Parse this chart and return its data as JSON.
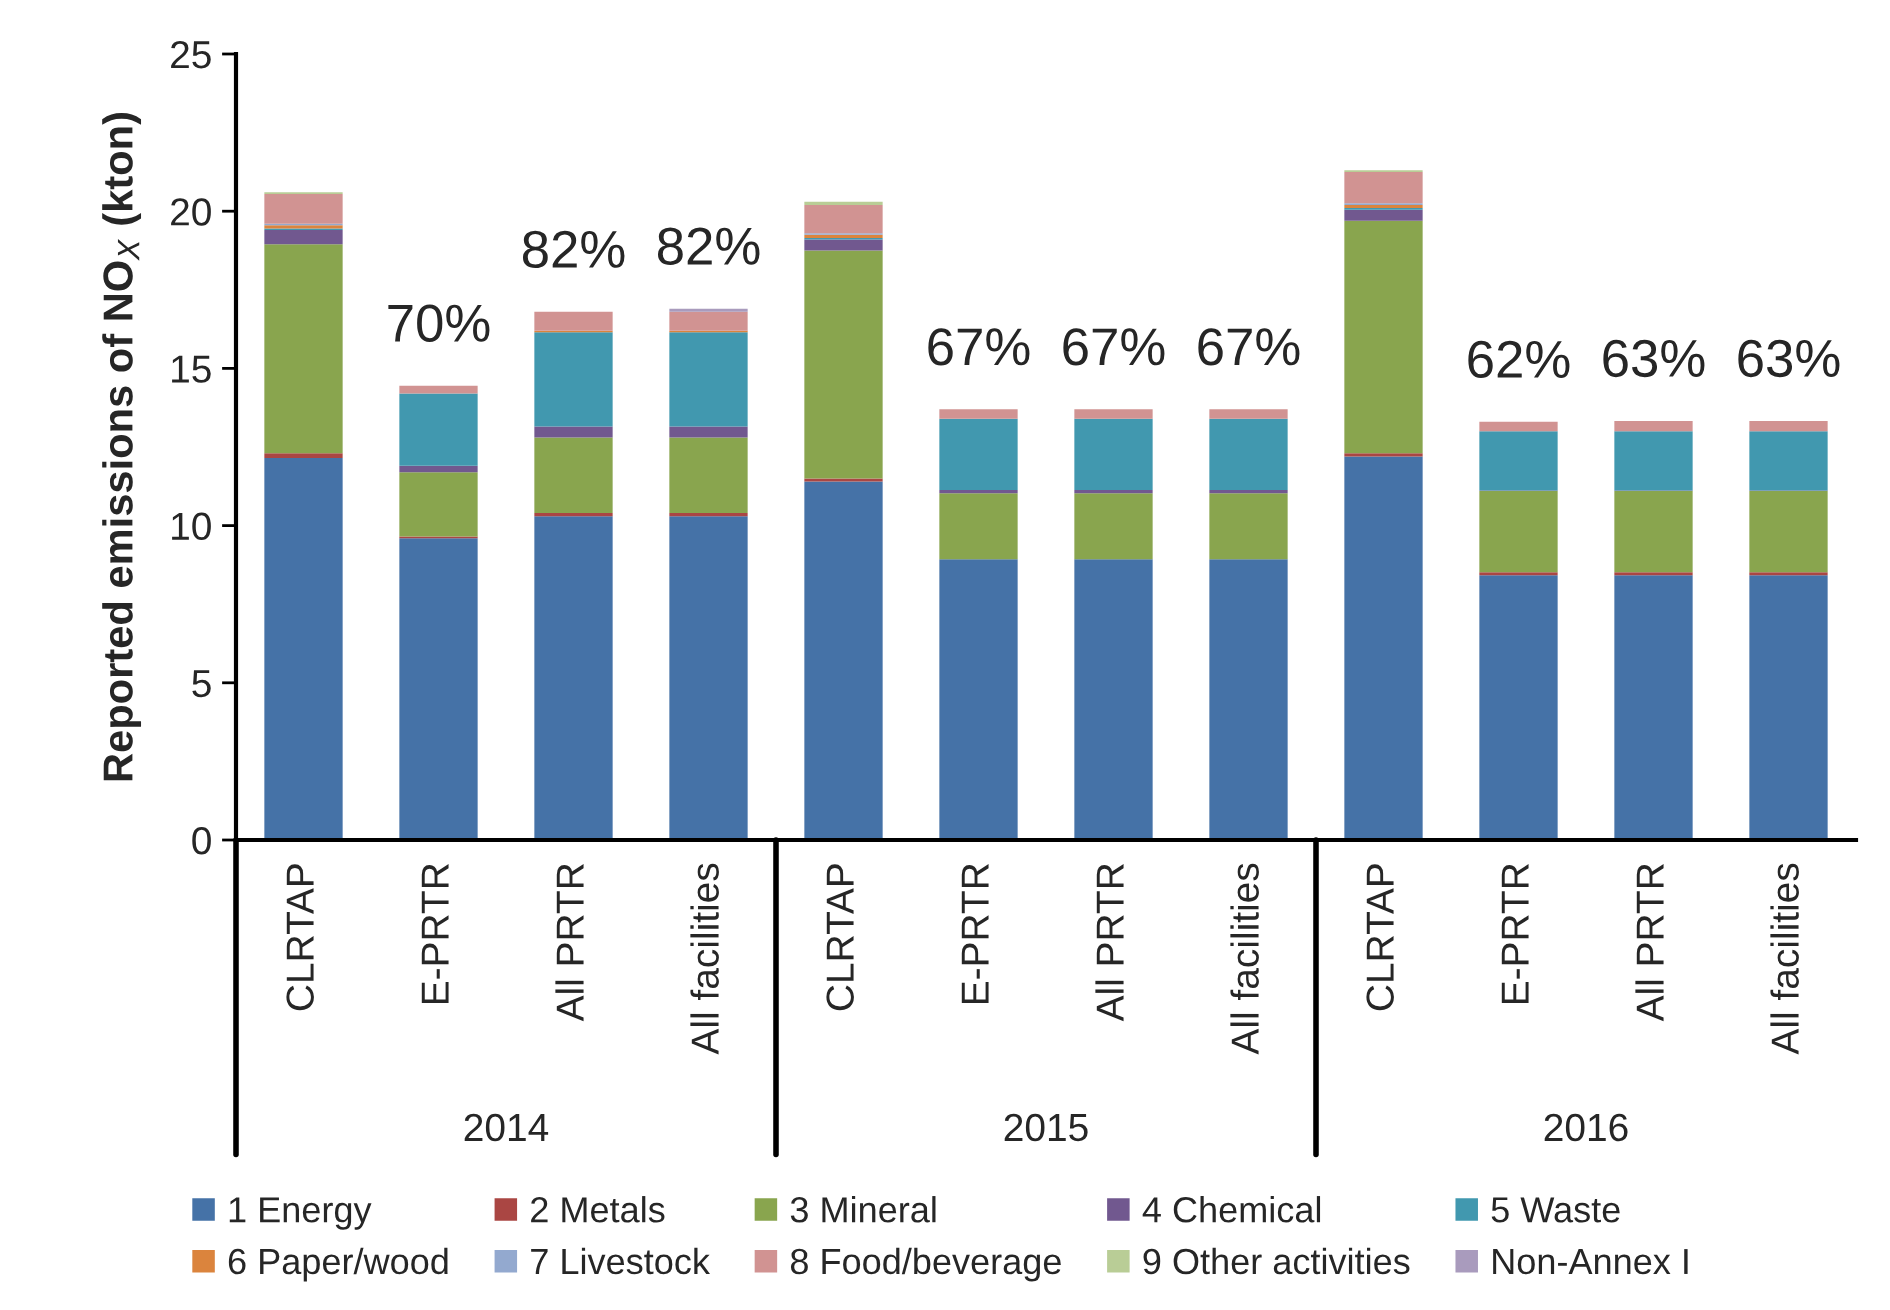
{
  "chart_data": {
    "type": "bar",
    "stacked": true,
    "ylabel": "Reported emissions of NO$_{X}$ (kton)",
    "categories": [
      "CLRTAP",
      "E-PRTR",
      "All PRTR",
      "All facilities",
      "CLRTAP",
      "E-PRTR",
      "All PRTR",
      "All facilities",
      "CLRTAP",
      "E-PRTR",
      "All PRTR",
      "All facilities"
    ],
    "series": [
      {
        "name": "1 Energy",
        "color": "#4572a7",
        "values": [
          12.15,
          9.6,
          10.3,
          10.3,
          11.4,
          8.93,
          8.93,
          8.93,
          12.2,
          8.42,
          8.42,
          8.42
        ]
      },
      {
        "name": "2 Metals",
        "color": "#aa4643",
        "values": [
          0.15,
          0.05,
          0.1,
          0.1,
          0.1,
          null,
          null,
          null,
          0.1,
          0.1,
          0.1,
          0.1
        ]
      },
      {
        "name": "3 Mineral",
        "color": "#89a54e",
        "values": [
          6.65,
          2.05,
          2.4,
          2.4,
          7.25,
          2.1,
          2.1,
          2.1,
          7.4,
          2.58,
          2.58,
          2.58
        ]
      },
      {
        "name": "4 Chemical",
        "color": "#71588f",
        "values": [
          0.45,
          0.2,
          0.35,
          0.35,
          0.35,
          0.1,
          0.1,
          0.1,
          0.35,
          0.02,
          0.02,
          0.02
        ]
      },
      {
        "name": "5 Waste",
        "color": "#4198af",
        "values": [
          0.05,
          2.3,
          3.0,
          3.0,
          0.05,
          2.27,
          2.27,
          2.27,
          0.05,
          1.88,
          1.88,
          1.88
        ]
      },
      {
        "name": "6 Paper/wood",
        "color": "#db843d",
        "values": [
          0.1,
          0.0,
          0.05,
          0.05,
          0.1,
          0.0,
          0.0,
          0.0,
          0.1,
          0.0,
          0.0,
          0.0
        ]
      },
      {
        "name": "7 Livestock",
        "color": "#93a9cf",
        "values": [
          0.05,
          0.0,
          0.0,
          0.0,
          0.05,
          0.0,
          0.0,
          0.0,
          0.05,
          0.0,
          0.0,
          0.0
        ]
      },
      {
        "name": "8 Food/beverage",
        "color": "#d19392",
        "values": [
          0.95,
          0.25,
          0.6,
          0.6,
          0.9,
          0.3,
          0.3,
          0.3,
          1.0,
          0.3,
          0.33,
          0.33
        ]
      },
      {
        "name": "9 Other activities",
        "color": "#b9cd96",
        "values": [
          0.05,
          0.0,
          0.0,
          0.0,
          0.1,
          0.0,
          0.0,
          0.0,
          0.05,
          0.0,
          0.0,
          0.0
        ]
      },
      {
        "name": "Non-Annex I",
        "color": "#a99bbd",
        "values": [
          0.0,
          0.0,
          0.0,
          0.1,
          0.0,
          0.0,
          0.0,
          0.0,
          0.0,
          0.0,
          0.0,
          0.0
        ]
      }
    ],
    "annotations": [
      "2014",
      "2015",
      "2016",
      "70%",
      "82%",
      "82%",
      "67%",
      "67%",
      "67%",
      "62%",
      "63%",
      "63%"
    ],
    "ylim": [
      0,
      25
    ],
    "yticks": [
      0,
      5,
      10,
      15,
      20,
      25
    ],
    "grid": false,
    "legend": "bottom"
  }
}
